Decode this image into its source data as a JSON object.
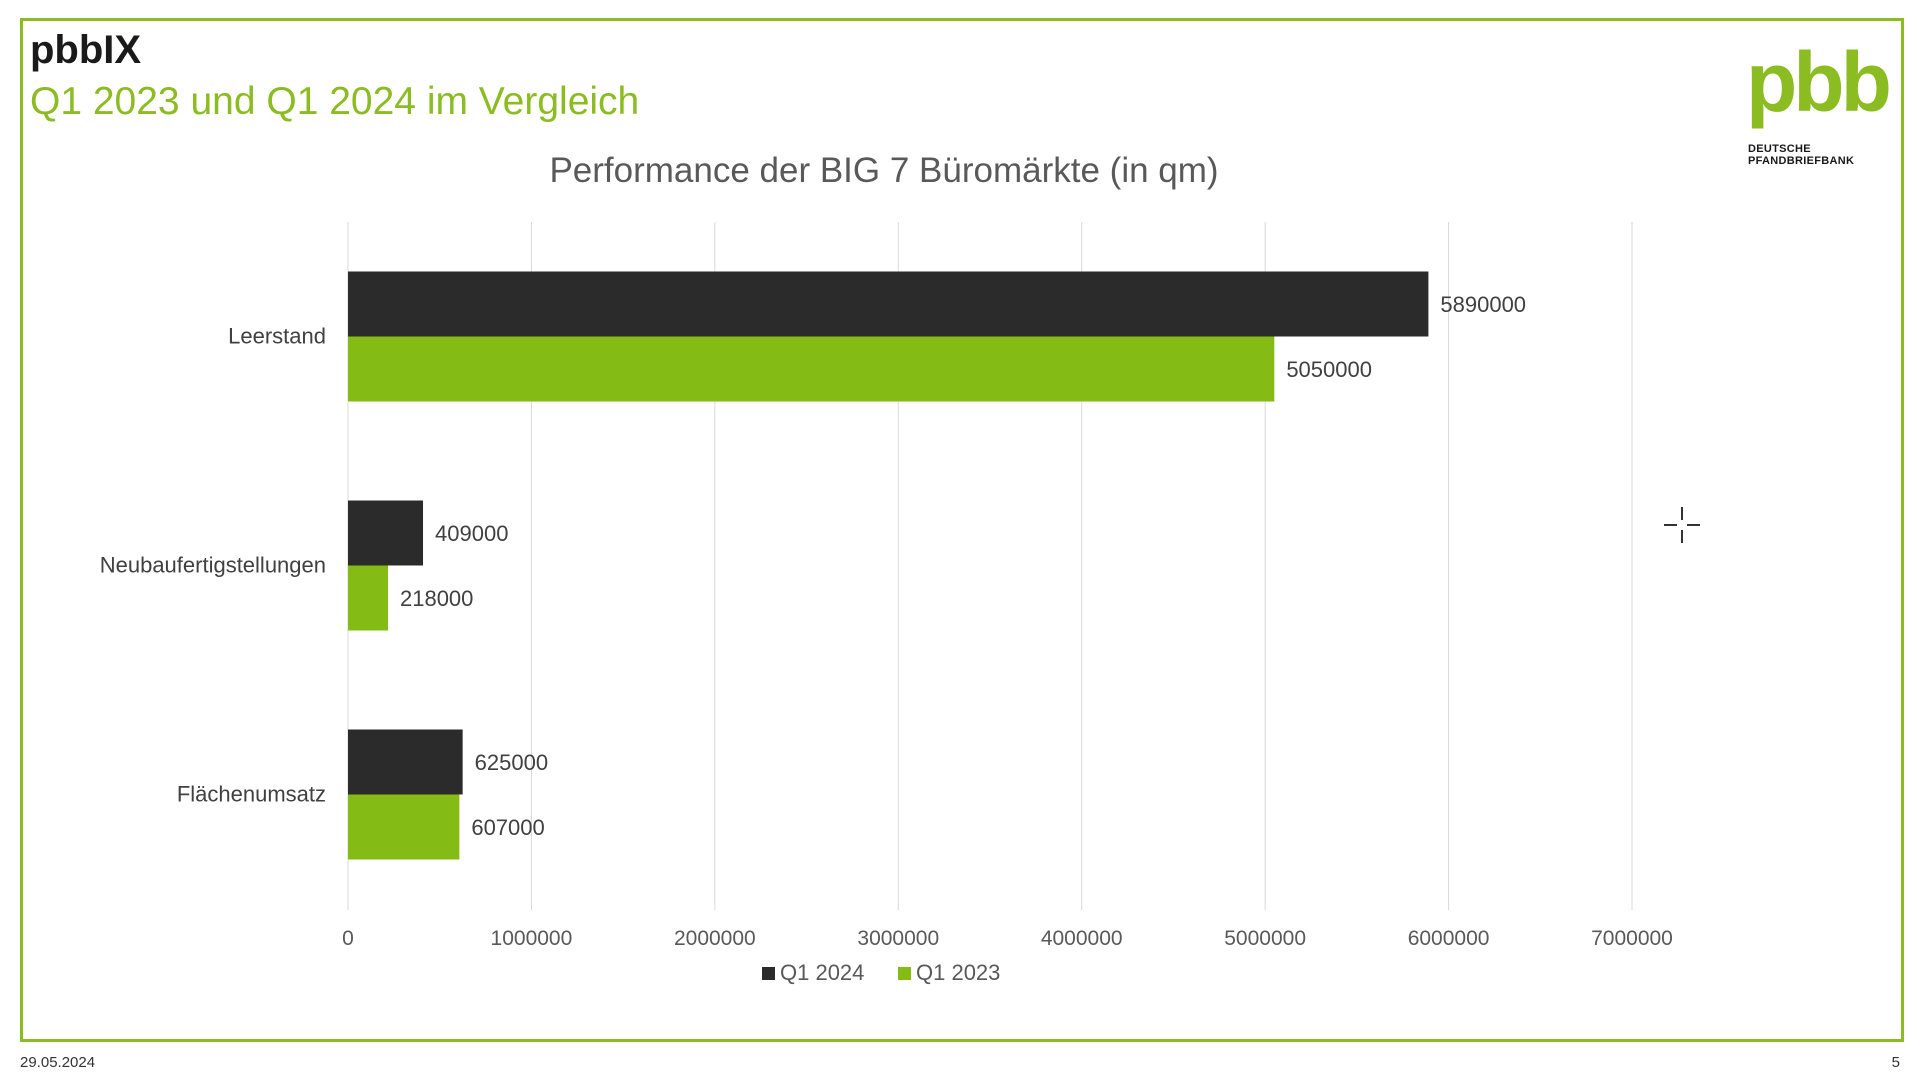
{
  "slide": {
    "title": "pbbIX",
    "subtitle": "Q1 2023 und Q1 2024 im Vergleich",
    "date": "29.05.2024",
    "page_number": "5"
  },
  "logo": {
    "wordmark": "pbb",
    "line1": "DEUTSCHE",
    "line2": "PFANDBRIEFBANK"
  },
  "colors": {
    "accent_green": "#8bbc21",
    "dark": "#2b2b2b",
    "frame": "#8bbc21",
    "gridline": "#d9d9d9"
  },
  "chart_data": {
    "type": "bar",
    "orientation": "horizontal",
    "title": "Performance der BIG 7 Büromärkte (in qm)",
    "categories": [
      "Leerstand",
      "Neubaufertigstellungen",
      "Flächenumsatz"
    ],
    "series": [
      {
        "name": "Q1 2024",
        "color": "#2b2b2b",
        "values": [
          5890000,
          409000,
          625000
        ]
      },
      {
        "name": "Q1 2023",
        "color": "#84bb14",
        "values": [
          5050000,
          218000,
          607000
        ]
      }
    ],
    "data_labels": true,
    "xlim": [
      0,
      7000000
    ],
    "xticks": [
      0,
      1000000,
      2000000,
      3000000,
      4000000,
      5000000,
      6000000,
      7000000
    ],
    "grid": true,
    "legend": "bottom-center"
  }
}
